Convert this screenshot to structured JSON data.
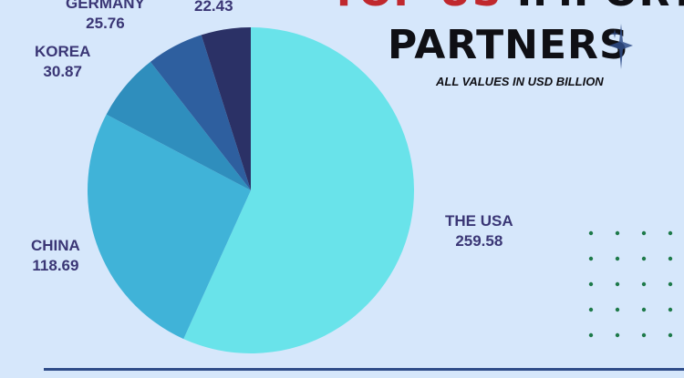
{
  "title": {
    "accent": "TOP US",
    "rest": "IMPORT",
    "line2": "PARTNERS"
  },
  "subtitle": "ALL VALUES IN USD BILLION",
  "chart_data": {
    "type": "pie",
    "title": "TOP US IMPORT PARTNERS",
    "unit": "USD Billion",
    "slices": [
      {
        "label": "THE USA",
        "value": 259.58,
        "color": "#69e3ea"
      },
      {
        "label": "CHINA",
        "value": 118.69,
        "color": "#40b3d8"
      },
      {
        "label": "KOREA",
        "value": 30.87,
        "color": "#2f8ebd"
      },
      {
        "label": "GERMANY",
        "value": 25.76,
        "color": "#2e5f9f"
      },
      {
        "label": "",
        "value": 22.43,
        "color": "#2b3166"
      }
    ],
    "value_labels": [
      "259.58",
      "118.69",
      "30.87",
      "25.76",
      "22.43"
    ]
  },
  "colors": {
    "accent_red": "#c0282d",
    "label_text": "#3a3675",
    "dot_green": "#1e7a4a"
  },
  "decorations": {
    "sparkle": "sparkle-icon"
  }
}
